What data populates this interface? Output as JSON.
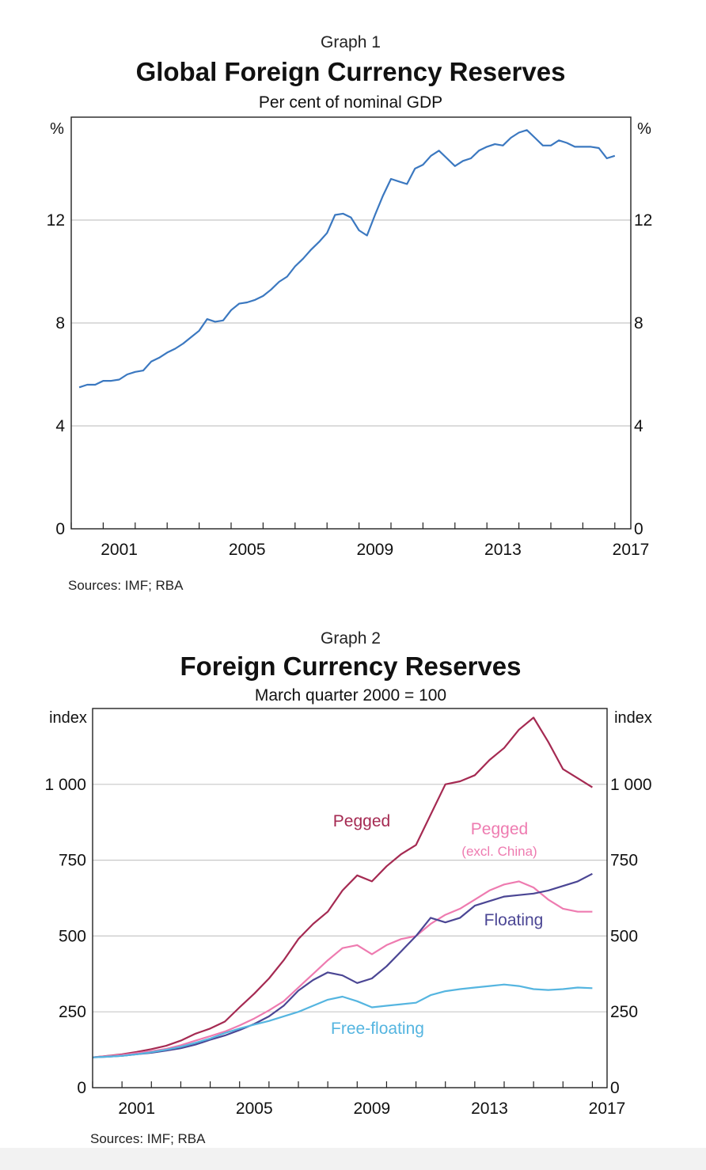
{
  "chart_data": [
    {
      "type": "line",
      "graph_number": "Graph 1",
      "title": "Global Foreign Currency Reserves",
      "subtitle": "Per cent of nominal GDP",
      "ylabel_left": "%",
      "ylabel_right": "%",
      "ylim": [
        0,
        16
      ],
      "yticks": [
        0,
        4,
        8,
        12
      ],
      "xlim": [
        2000,
        2017.5
      ],
      "xticks": [
        2001,
        2005,
        2009,
        2013,
        2017
      ],
      "grid": true,
      "source": "Sources: IMF; RBA",
      "colors": {
        "line": "#3b78c0",
        "grid": "#c8c8c8"
      },
      "series": [
        {
          "x": [
            2000.25,
            2000.5,
            2000.75,
            2001,
            2001.25,
            2001.5,
            2001.75,
            2002,
            2002.25,
            2002.5,
            2002.75,
            2003,
            2003.25,
            2003.5,
            2003.75,
            2004,
            2004.25,
            2004.5,
            2004.75,
            2005,
            2005.25,
            2005.5,
            2005.75,
            2006,
            2006.25,
            2006.5,
            2006.75,
            2007,
            2007.25,
            2007.5,
            2007.75,
            2008,
            2008.25,
            2008.5,
            2008.75,
            2009,
            2009.25,
            2009.5,
            2009.75,
            2010,
            2010.25,
            2010.5,
            2010.75,
            2011,
            2011.25,
            2011.5,
            2011.75,
            2012,
            2012.25,
            2012.5,
            2012.75,
            2013,
            2013.25,
            2013.5,
            2013.75,
            2014,
            2014.25,
            2014.5,
            2014.75,
            2015,
            2015.25,
            2015.5,
            2015.75,
            2016,
            2016.25,
            2016.5,
            2016.75,
            2017
          ],
          "values": [
            5.5,
            5.6,
            5.6,
            5.75,
            5.75,
            5.8,
            6.0,
            6.1,
            6.15,
            6.5,
            6.65,
            6.85,
            7.0,
            7.2,
            7.45,
            7.7,
            8.15,
            8.05,
            8.1,
            8.5,
            8.75,
            8.8,
            8.9,
            9.05,
            9.3,
            9.6,
            9.8,
            10.2,
            10.5,
            10.85,
            11.15,
            11.5,
            12.2,
            12.25,
            12.1,
            11.6,
            11.4,
            12.2,
            12.95,
            13.6,
            13.5,
            13.4,
            14.0,
            14.15,
            14.5,
            14.7,
            14.4,
            14.1,
            14.3,
            14.4,
            14.7,
            14.85,
            14.95,
            14.9,
            15.2,
            15.4,
            15.5,
            15.2,
            14.9,
            14.9,
            15.1,
            15.0,
            14.85,
            14.85,
            14.85,
            14.8,
            14.4,
            14.5
          ]
        }
      ]
    },
    {
      "type": "line",
      "graph_number": "Graph 2",
      "title": "Foreign Currency Reserves",
      "subtitle": "March quarter 2000 = 100",
      "ylabel_left": "index",
      "ylabel_right": "index",
      "ylim": [
        0,
        1250
      ],
      "yticks": [
        0,
        250,
        500,
        750,
        1000
      ],
      "ytick_labels": [
        "0",
        "250",
        "500",
        "750",
        "1 000"
      ],
      "xlim": [
        2000,
        2017.5
      ],
      "xticks": [
        2001,
        2005,
        2009,
        2013,
        2017
      ],
      "grid": true,
      "source": "Sources: IMF; RBA",
      "colors": {
        "grid": "#c8c8c8"
      },
      "x": [
        2000,
        2000.5,
        2001,
        2001.5,
        2002,
        2002.5,
        2003,
        2003.5,
        2004,
        2004.5,
        2005,
        2005.5,
        2006,
        2006.5,
        2007,
        2007.5,
        2008,
        2008.5,
        2009,
        2009.5,
        2010,
        2010.5,
        2011,
        2011.5,
        2012,
        2012.5,
        2013,
        2013.5,
        2014,
        2014.5,
        2015,
        2015.5,
        2016,
        2016.5,
        2017
      ],
      "series": [
        {
          "name": "Pegged",
          "color": "#a52a52",
          "values": [
            100,
            105,
            110,
            118,
            127,
            138,
            155,
            178,
            195,
            218,
            265,
            310,
            360,
            420,
            490,
            540,
            580,
            650,
            700,
            680,
            730,
            770,
            800,
            900,
            1000,
            1010,
            1030,
            1080,
            1120,
            1180,
            1220,
            1140,
            1050,
            1020,
            990
          ]
        },
        {
          "name": "Pegged",
          "name_note": "(excl. China)",
          "color": "#ee7bb0",
          "values": [
            100,
            104,
            108,
            114,
            120,
            128,
            140,
            155,
            170,
            185,
            205,
            228,
            255,
            285,
            330,
            375,
            420,
            460,
            470,
            440,
            470,
            490,
            500,
            540,
            570,
            590,
            620,
            650,
            670,
            680,
            660,
            620,
            590,
            580,
            580
          ]
        },
        {
          "name": "Floating",
          "color": "#4b4694",
          "values": [
            100,
            102,
            105,
            110,
            115,
            122,
            130,
            142,
            158,
            172,
            190,
            210,
            235,
            270,
            320,
            355,
            380,
            370,
            345,
            360,
            400,
            450,
            500,
            560,
            545,
            560,
            600,
            615,
            630,
            635,
            640,
            650,
            665,
            680,
            705
          ]
        },
        {
          "name": "Free-floating",
          "color": "#55b5e0",
          "values": [
            100,
            102,
            105,
            110,
            117,
            125,
            135,
            148,
            162,
            180,
            195,
            208,
            220,
            235,
            250,
            270,
            290,
            300,
            285,
            265,
            270,
            275,
            280,
            305,
            318,
            325,
            330,
            335,
            340,
            335,
            325,
            322,
            325,
            330,
            328
          ]
        }
      ]
    }
  ]
}
